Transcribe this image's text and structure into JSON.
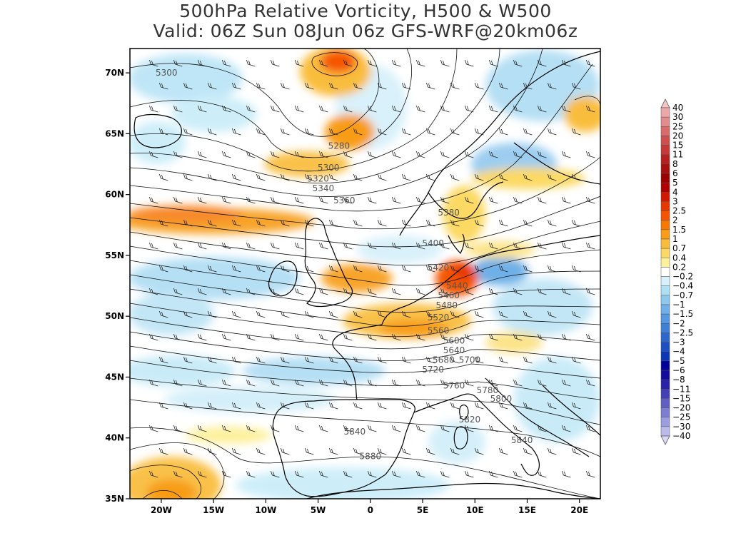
{
  "title": {
    "line1": "500hPa Relative Vorticity, H500 & W500",
    "line2": "Valid: 06Z Sun 08Jun 06z GFS-WRF@20km06z"
  },
  "map": {
    "lon_range": [
      -23,
      22
    ],
    "lat_range": [
      35,
      72
    ],
    "x_ticks": [
      {
        "lon": -20,
        "label": "20W"
      },
      {
        "lon": -15,
        "label": "15W"
      },
      {
        "lon": -10,
        "label": "10W"
      },
      {
        "lon": -5,
        "label": "5W"
      },
      {
        "lon": 0,
        "label": "0"
      },
      {
        "lon": 5,
        "label": "5E"
      },
      {
        "lon": 10,
        "label": "10E"
      },
      {
        "lon": 15,
        "label": "15E"
      },
      {
        "lon": 20,
        "label": "20E"
      }
    ],
    "y_ticks": [
      {
        "lat": 35,
        "label": "35N"
      },
      {
        "lat": 40,
        "label": "40N"
      },
      {
        "lat": 45,
        "label": "45N"
      },
      {
        "lat": 50,
        "label": "50N"
      },
      {
        "lat": 55,
        "label": "55N"
      },
      {
        "lat": 60,
        "label": "60N"
      },
      {
        "lat": 65,
        "label": "65N"
      },
      {
        "lat": 70,
        "label": "70N"
      }
    ],
    "contour_labels": [
      {
        "text": "5300",
        "lon": -19.5,
        "lat": 70.0
      },
      {
        "text": "5280",
        "lon": -3.0,
        "lat": 64.0
      },
      {
        "text": "5300",
        "lon": -4.0,
        "lat": 62.2
      },
      {
        "text": "5320",
        "lon": -5.0,
        "lat": 61.3
      },
      {
        "text": "5340",
        "lon": -4.5,
        "lat": 60.5
      },
      {
        "text": "5360",
        "lon": -2.5,
        "lat": 59.5
      },
      {
        "text": "5380",
        "lon": 7.5,
        "lat": 58.5
      },
      {
        "text": "5400",
        "lon": 6.0,
        "lat": 56.0
      },
      {
        "text": "5420",
        "lon": 6.5,
        "lat": 54.0
      },
      {
        "text": "5440",
        "lon": 8.3,
        "lat": 52.5
      },
      {
        "text": "5460",
        "lon": 7.5,
        "lat": 51.7
      },
      {
        "text": "5480",
        "lon": 7.3,
        "lat": 50.9
      },
      {
        "text": "5520",
        "lon": 6.5,
        "lat": 49.9
      },
      {
        "text": "5560",
        "lon": 6.5,
        "lat": 48.8
      },
      {
        "text": "5600",
        "lon": 8.0,
        "lat": 48.0
      },
      {
        "text": "5640",
        "lon": 8.0,
        "lat": 47.2
      },
      {
        "text": "5680",
        "lon": 7.0,
        "lat": 46.4
      },
      {
        "text": "5700",
        "lon": 9.5,
        "lat": 46.4
      },
      {
        "text": "5720",
        "lon": 6.0,
        "lat": 45.6
      },
      {
        "text": "5760",
        "lon": 8.0,
        "lat": 44.3
      },
      {
        "text": "5780",
        "lon": 11.2,
        "lat": 43.9
      },
      {
        "text": "5800",
        "lon": 12.5,
        "lat": 43.2
      },
      {
        "text": "5820",
        "lon": 9.5,
        "lat": 41.5
      },
      {
        "text": "5840",
        "lon": -1.5,
        "lat": 40.5
      },
      {
        "text": "5840",
        "lon": 14.5,
        "lat": 39.8
      },
      {
        "text": "5880",
        "lon": 0.0,
        "lat": 38.5
      }
    ]
  },
  "colorbar": {
    "labels": [
      "40",
      "30",
      "25",
      "20",
      "15",
      "11",
      "8",
      "6",
      "5",
      "4",
      "3",
      "2.5",
      "2",
      "1.5",
      "1",
      "0.7",
      "0.4",
      "0.2",
      "−0.2",
      "−0.4",
      "−0.7",
      "−1",
      "−1.5",
      "−2",
      "−2.5",
      "−3",
      "−4",
      "−5",
      "−6",
      "−8",
      "−11",
      "−15",
      "−20",
      "−25",
      "−30",
      "−40"
    ],
    "colors": [
      "#f5c4c4",
      "#eca8a8",
      "#e38c8c",
      "#d96b6b",
      "#cf4f4f",
      "#c83838",
      "#b82020",
      "#a81010",
      "#9c0000",
      "#b00000",
      "#d11800",
      "#e83800",
      "#f55500",
      "#f77800",
      "#f89c19",
      "#f9bd3c",
      "#fbd964",
      "#fdf09c",
      "#ffffff",
      "#d8f0fb",
      "#aee0f5",
      "#8dc8ef",
      "#6fb0e8",
      "#5597e0",
      "#3f7fd6",
      "#2b67cc",
      "#1b4fc2",
      "#0c36b8",
      "#000099",
      "#140a9c",
      "#2a22a8",
      "#4340b6",
      "#5f5fc4",
      "#7c7ed2",
      "#9a9ddf",
      "#babbeb",
      "#d9d8f5"
    ]
  }
}
